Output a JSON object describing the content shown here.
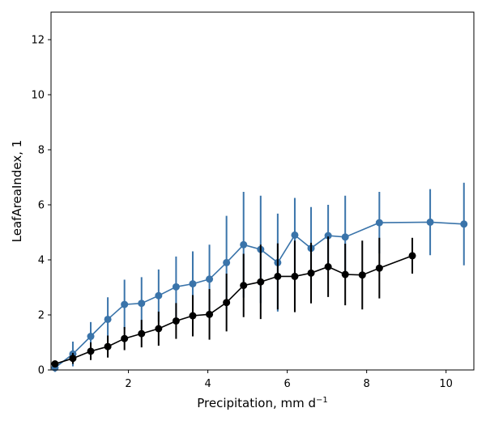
{
  "chart_data": {
    "type": "line",
    "xlabel": "Precipitation,  mm d",
    "xlabel_sup": "−1",
    "ylabel": "LeafAreaIndex,  1",
    "xlim": [
      0.05,
      10.7
    ],
    "ylim": [
      0,
      13
    ],
    "xticks": [
      2,
      4,
      6,
      8,
      10
    ],
    "yticks": [
      0,
      2,
      4,
      6,
      8,
      10,
      12
    ],
    "grid": false,
    "series": [
      {
        "color": "#3a74aa",
        "points": [
          {
            "x": 0.15,
            "y": 0.08,
            "err": 0.15
          },
          {
            "x": 0.6,
            "y": 0.58,
            "err": 0.45
          },
          {
            "x": 1.05,
            "y": 1.22,
            "err": 0.52
          },
          {
            "x": 1.48,
            "y": 1.84,
            "err": 0.8
          },
          {
            "x": 1.9,
            "y": 2.38,
            "err": 0.9
          },
          {
            "x": 2.33,
            "y": 2.42,
            "err": 0.95
          },
          {
            "x": 2.76,
            "y": 2.7,
            "err": 0.95
          },
          {
            "x": 3.2,
            "y": 3.02,
            "err": 1.1
          },
          {
            "x": 3.62,
            "y": 3.13,
            "err": 1.18
          },
          {
            "x": 4.04,
            "y": 3.3,
            "err": 1.25
          },
          {
            "x": 4.47,
            "y": 3.9,
            "err": 1.7
          },
          {
            "x": 4.9,
            "y": 4.55,
            "err": 1.92
          },
          {
            "x": 5.33,
            "y": 4.38,
            "err": 1.95
          },
          {
            "x": 5.76,
            "y": 3.9,
            "err": 1.78
          },
          {
            "x": 6.19,
            "y": 4.9,
            "err": 1.35
          },
          {
            "x": 6.6,
            "y": 4.42,
            "err": 1.5
          },
          {
            "x": 7.03,
            "y": 4.88,
            "err": 1.12
          },
          {
            "x": 7.46,
            "y": 4.83,
            "err": 1.5
          },
          {
            "x": 8.32,
            "y": 5.35,
            "err": 1.12
          },
          {
            "x": 9.6,
            "y": 5.37,
            "err": 1.2
          },
          {
            "x": 10.45,
            "y": 5.3,
            "err": 1.5
          }
        ]
      },
      {
        "color": "#000000",
        "points": [
          {
            "x": 0.15,
            "y": 0.22,
            "err": 0.12
          },
          {
            "x": 0.6,
            "y": 0.42,
            "err": 0.2
          },
          {
            "x": 1.05,
            "y": 0.68,
            "err": 0.32
          },
          {
            "x": 1.48,
            "y": 0.85,
            "err": 0.4
          },
          {
            "x": 1.9,
            "y": 1.14,
            "err": 0.42
          },
          {
            "x": 2.33,
            "y": 1.32,
            "err": 0.5
          },
          {
            "x": 2.76,
            "y": 1.5,
            "err": 0.62
          },
          {
            "x": 3.2,
            "y": 1.78,
            "err": 0.65
          },
          {
            "x": 3.62,
            "y": 1.97,
            "err": 0.75
          },
          {
            "x": 4.04,
            "y": 2.02,
            "err": 0.92
          },
          {
            "x": 4.47,
            "y": 2.45,
            "err": 1.05
          },
          {
            "x": 4.9,
            "y": 3.07,
            "err": 1.15
          },
          {
            "x": 5.33,
            "y": 3.2,
            "err": 1.35
          },
          {
            "x": 5.76,
            "y": 3.4,
            "err": 1.2
          },
          {
            "x": 6.19,
            "y": 3.4,
            "err": 1.3
          },
          {
            "x": 6.6,
            "y": 3.52,
            "err": 1.1
          },
          {
            "x": 7.03,
            "y": 3.75,
            "err": 1.1
          },
          {
            "x": 7.46,
            "y": 3.47,
            "err": 1.12
          },
          {
            "x": 7.89,
            "y": 3.45,
            "err": 1.25
          },
          {
            "x": 8.32,
            "y": 3.7,
            "err": 1.1
          },
          {
            "x": 9.15,
            "y": 4.15,
            "err": 0.65
          }
        ]
      }
    ]
  }
}
